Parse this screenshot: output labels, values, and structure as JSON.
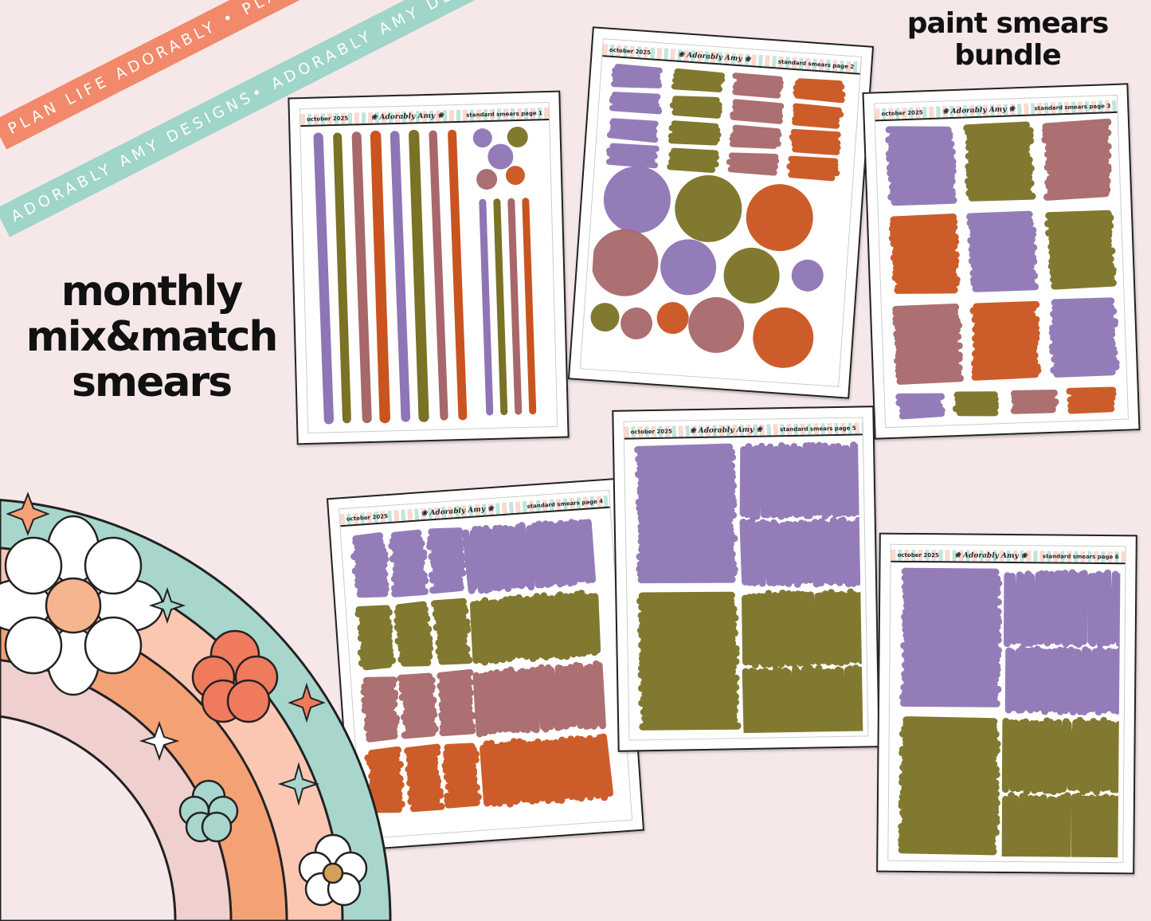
{
  "ribbons": {
    "coral": "PLAN LIFE ADORABLY • PLAN LIFE ADORABLY • PLAN LIFE ADORABLY",
    "teal": "ADORABLY AMY DESIGNS• ADORABLY AMY DESIGNS •ADORABLY AMY DESIGNS"
  },
  "titles": {
    "left_lines": [
      "monthly",
      "mix&match",
      "smears"
    ],
    "right_lines": [
      "paint smears",
      "bundle"
    ]
  },
  "palette": {
    "purple": "#8e75b5",
    "olive": "#7a7224",
    "mauve": "#a8676a",
    "orange": "#c9541f"
  },
  "sheets": [
    {
      "date": "october 2025",
      "logo": "Adorably Amy designs",
      "label": "standard smears page 1",
      "style": "stripes-dots"
    },
    {
      "date": "october 2025",
      "logo": "Adorably Amy designs",
      "label": "standard smears page 2",
      "style": "small-scribbles-circles"
    },
    {
      "date": "october 2025",
      "logo": "Adorably Amy designs",
      "label": "standard smears page 3",
      "style": "medium-scribbles"
    },
    {
      "date": "october 2025",
      "logo": "Adorably Amy designs",
      "label": "standard smears page 4",
      "style": "vertical-scribbles"
    },
    {
      "date": "october 2025",
      "logo": "Adorably Amy designs",
      "label": "standard smears page 5",
      "style": "large-scribbles"
    },
    {
      "date": "october 2025",
      "logo": "Adorably Amy designs",
      "label": "standard smears page 6",
      "style": "large-scribbles"
    }
  ]
}
